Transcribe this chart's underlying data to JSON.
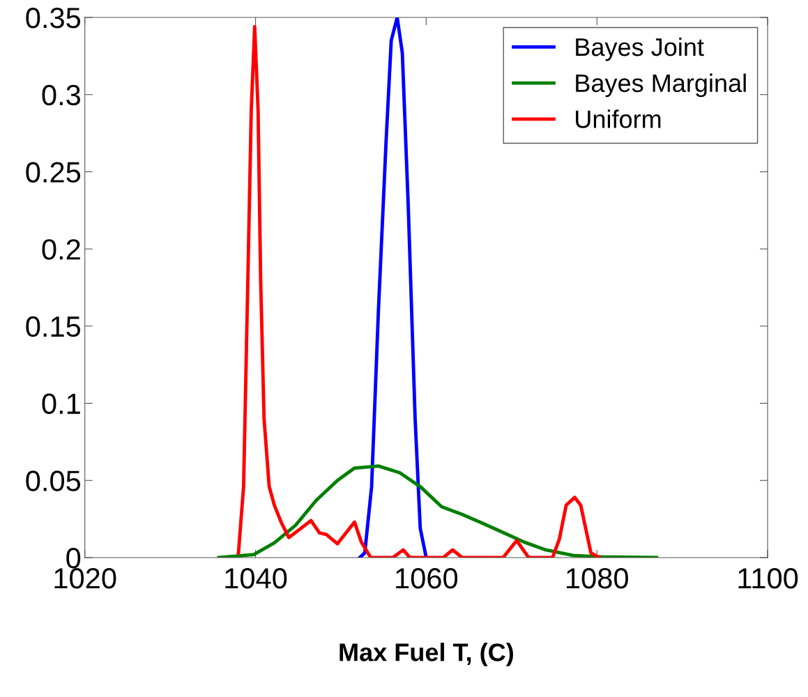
{
  "chart_data": {
    "type": "line",
    "xlabel": "Max Fuel T, (C)",
    "xlim": [
      1020,
      1100
    ],
    "xticks": [
      1020,
      1040,
      1060,
      1080,
      1100
    ],
    "ylim": [
      0,
      0.35
    ],
    "yticks": [
      0,
      0.05,
      0.1,
      0.15,
      0.2,
      0.25,
      0.3,
      0.35
    ],
    "grid": false,
    "legend": "top right",
    "marker": "none",
    "line_style": "solid",
    "series": [
      {
        "name": "Bayes Joint",
        "color": "#0000ff",
        "x": [
          1052.2,
          1052.8,
          1053.6,
          1054.4,
          1055.3,
          1055.9,
          1056.6,
          1057.2,
          1057.9,
          1058.7,
          1059.3,
          1060.0
        ],
        "values": [
          0,
          0.003,
          0.046,
          0.16,
          0.27,
          0.335,
          0.35,
          0.327,
          0.227,
          0.09,
          0.019,
          0
        ]
      },
      {
        "name": "Bayes Marginal",
        "color": "#007f00",
        "x": [
          1035.7,
          1039.8,
          1042.2,
          1044.7,
          1047.1,
          1049.6,
          1051.6,
          1054.4,
          1056.9,
          1059.3,
          1061.8,
          1064.2,
          1066.7,
          1069.1,
          1071.5,
          1074.0,
          1077.2,
          1080.5,
          1087.0
        ],
        "values": [
          0,
          0.002,
          0.0095,
          0.021,
          0.037,
          0.05,
          0.058,
          0.0593,
          0.055,
          0.046,
          0.033,
          0.028,
          0.022,
          0.016,
          0.01,
          0.005,
          0.0014,
          0.0005,
          0
        ]
      },
      {
        "name": "Uniform",
        "color": "#ff0000",
        "x": [
          1038.0,
          1038.6,
          1039.1,
          1039.5,
          1039.9,
          1040.3,
          1040.6,
          1041.0,
          1041.6,
          1042.2,
          1043.0,
          1043.9,
          1045.1,
          1046.5,
          1047.5,
          1048.3,
          1049.6,
          1050.6,
          1051.6,
          1052.4,
          1053.5,
          1056.1,
          1057.3,
          1058.1,
          1062.0,
          1063.1,
          1064.2,
          1069.0,
          1070.6,
          1072.0,
          1074.8,
          1075.6,
          1076.4,
          1077.4,
          1078.1,
          1079.3,
          1080.3
        ],
        "values": [
          0.003,
          0.046,
          0.18,
          0.29,
          0.344,
          0.29,
          0.18,
          0.09,
          0.046,
          0.034,
          0.023,
          0.013,
          0.018,
          0.024,
          0.016,
          0.015,
          0.009,
          0.016,
          0.023,
          0.01,
          0,
          0,
          0.005,
          0,
          0,
          0.005,
          0,
          0,
          0.011,
          0,
          0,
          0.012,
          0.034,
          0.039,
          0.034,
          0.003,
          0
        ]
      }
    ]
  }
}
